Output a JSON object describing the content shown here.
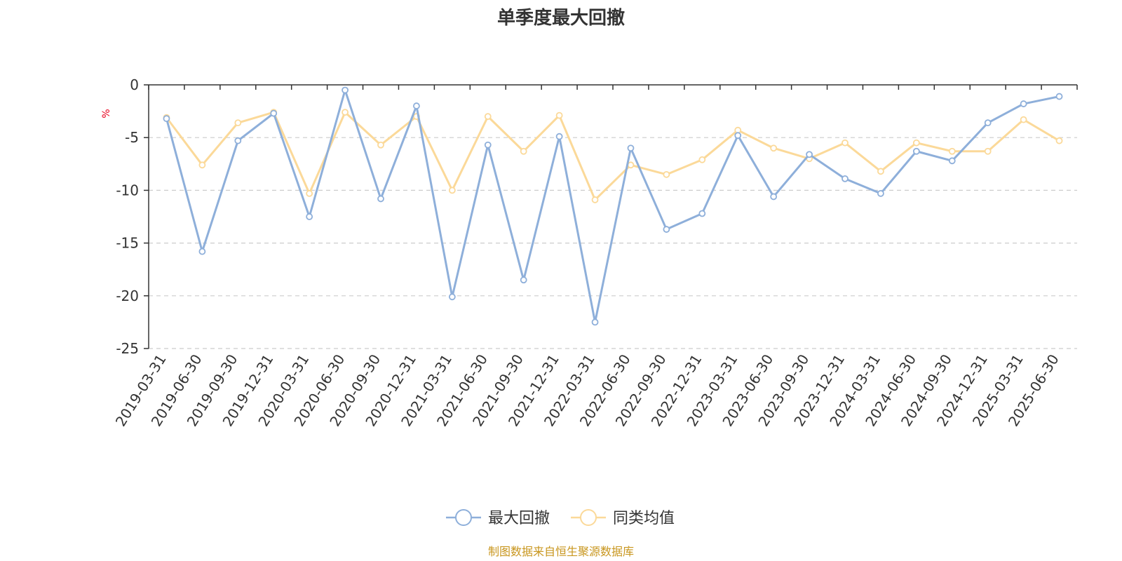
{
  "chart_data": {
    "type": "line",
    "title": "单季度最大回撤",
    "ylabel": "%",
    "ylim": [
      -25,
      0
    ],
    "yticks": [
      0,
      -5,
      -10,
      -15,
      -20,
      -25
    ],
    "grid": true,
    "legend_position": "bottom-center",
    "categories": [
      "2019-03-31",
      "2019-06-30",
      "2019-09-30",
      "2019-12-31",
      "2020-03-31",
      "2020-06-30",
      "2020-09-30",
      "2020-12-31",
      "2021-03-31",
      "2021-06-30",
      "2021-09-30",
      "2021-12-31",
      "2022-03-31",
      "2022-06-30",
      "2022-09-30",
      "2022-12-31",
      "2023-03-31",
      "2023-06-30",
      "2023-09-30",
      "2023-12-31",
      "2024-03-31",
      "2024-06-30",
      "2024-09-30",
      "2024-12-31",
      "2025-03-31",
      "2025-06-30"
    ],
    "series": [
      {
        "name": "最大回撤",
        "color": "#8eafda",
        "values": [
          -3.2,
          -15.8,
          -5.3,
          -2.7,
          -12.5,
          -0.5,
          -10.8,
          -2.0,
          -20.1,
          -5.7,
          -18.5,
          -4.9,
          -22.5,
          -6.0,
          -13.7,
          -12.2,
          -4.8,
          -10.6,
          -6.6,
          -8.9,
          -10.3,
          -6.3,
          -7.2,
          -3.6,
          -1.8,
          -1.1
        ]
      },
      {
        "name": "同类均值",
        "color": "#fbd999",
        "values": [
          -3.1,
          -7.6,
          -3.6,
          -2.6,
          -10.3,
          -2.6,
          -5.7,
          -3.0,
          -10.0,
          -3.0,
          -6.3,
          -2.9,
          -10.9,
          -7.6,
          -8.5,
          -7.1,
          -4.3,
          -6.0,
          -7.0,
          -5.5,
          -8.2,
          -5.5,
          -6.3,
          -6.3,
          -3.3,
          -5.3
        ]
      }
    ],
    "source": "制图数据来自恒生聚源数据库"
  },
  "colors": {
    "axis": "#333333",
    "grid": "#cccccc",
    "unit": "#e8001c",
    "source": "#c8961e"
  }
}
